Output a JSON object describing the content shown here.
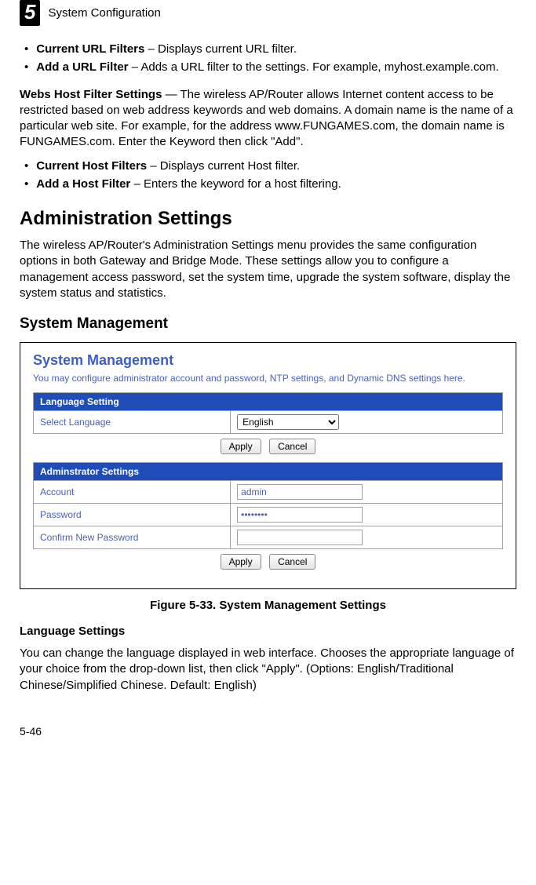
{
  "chapter": {
    "number": "5",
    "title": "System Configuration"
  },
  "urlFilters": {
    "item1": {
      "bold": "Current URL Filters",
      "rest": " – Displays current URL filter."
    },
    "item2": {
      "bold": "Add a URL Filter",
      "rest": " – Adds a URL filter to the settings. For example, myhost.example.com."
    }
  },
  "websHost": {
    "bold": "Webs Host Filter Settings",
    "rest": " — The wireless AP/Router allows Internet content access to be restricted based on web address keywords and web domains. A domain name is the name of a particular web site. For example, for the address www.FUNGAMES.com, the domain name is FUNGAMES.com. Enter the Keyword then click \"Add\"."
  },
  "hostFilters": {
    "item1": {
      "bold": "Current Host Filters",
      "rest": " – Displays current Host filter."
    },
    "item2": {
      "bold": "Add a Host Filter",
      "rest": " – Enters the keyword for a host filtering."
    }
  },
  "admin": {
    "heading": "Administration Settings",
    "para": "The wireless AP/Router's Administration Settings menu provides the same configuration options in both Gateway and Bridge Mode. These settings allow you to configure a management access password, set the system time, upgrade the system software, display the system status and statistics."
  },
  "sysMgmt": {
    "heading": "System Management",
    "figure_caption": "Figure 5-33.   System Management Settings",
    "screenshot": {
      "title": "System Management",
      "desc": "You may configure administrator account and password, NTP settings, and Dynamic DNS settings here.",
      "lang_header": "Language Setting",
      "lang_label": "Select Language",
      "lang_value": "English",
      "admin_header": "Adminstrator Settings",
      "account_label": "Account",
      "account_value": "admin",
      "password_label": "Password",
      "password_value": "••••••••",
      "confirm_label": "Confirm New Password",
      "confirm_value": "",
      "apply": "Apply",
      "cancel": "Cancel"
    }
  },
  "langSettings": {
    "heading": "Language Settings",
    "para": "You can change the language displayed in web interface. Chooses the appropriate language of your choice from the drop-down list, then click \"Apply\". (Options: English/Traditional Chinese/Simplified Chinese. Default: English)"
  },
  "pageNum": "5-46"
}
